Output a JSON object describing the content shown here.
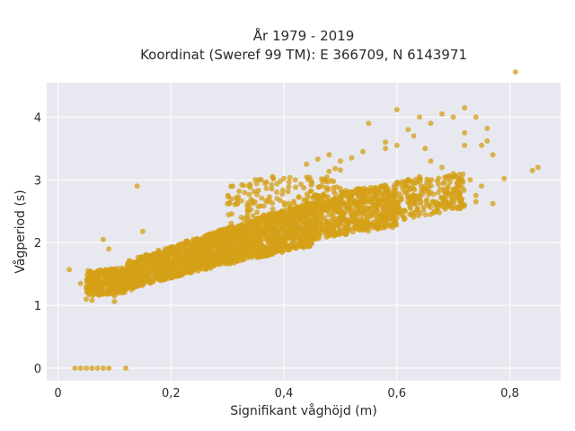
{
  "chart_data": {
    "type": "scatter",
    "title_line1": "År 1979 - 2019",
    "title_line2": "Koordinat (Sweref 99 TM): E 366709, N 6143971",
    "xlabel": "Signifikant våghöjd (m)",
    "ylabel": "Vågperiod (s)",
    "xlim": [
      -0.02,
      0.89
    ],
    "ylim": [
      -0.2,
      4.55
    ],
    "x_ticks": [
      {
        "value": 0,
        "label": "0"
      },
      {
        "value": 0.2,
        "label": "0,2"
      },
      {
        "value": 0.4,
        "label": "0,4"
      },
      {
        "value": 0.6,
        "label": "0,6"
      },
      {
        "value": 0.8,
        "label": "0,8"
      }
    ],
    "y_ticks": [
      {
        "value": 0,
        "label": "0"
      },
      {
        "value": 1,
        "label": "1"
      },
      {
        "value": 2,
        "label": "2"
      },
      {
        "value": 3,
        "label": "3"
      },
      {
        "value": 4,
        "label": "4"
      }
    ],
    "grid": true,
    "marker_color": "#d4a017",
    "background_color": "#e8e8f0",
    "points": [
      [
        0.03,
        0.0
      ],
      [
        0.04,
        0.0
      ],
      [
        0.05,
        0.0
      ],
      [
        0.06,
        0.0
      ],
      [
        0.07,
        0.0
      ],
      [
        0.08,
        0.0
      ],
      [
        0.09,
        0.0
      ],
      [
        0.12,
        0.0
      ],
      [
        0.02,
        1.57
      ],
      [
        0.04,
        1.35
      ],
      [
        0.05,
        1.1
      ],
      [
        0.055,
        1.2
      ],
      [
        0.06,
        1.08
      ],
      [
        0.07,
        1.3
      ],
      [
        0.08,
        1.2
      ],
      [
        0.09,
        1.5
      ],
      [
        0.09,
        1.9
      ],
      [
        0.08,
        2.05
      ],
      [
        0.1,
        1.15
      ],
      [
        0.1,
        1.06
      ],
      [
        0.13,
        1.25
      ],
      [
        0.14,
        1.6
      ],
      [
        0.15,
        2.18
      ],
      [
        0.14,
        2.9
      ],
      [
        0.06,
        1.45
      ],
      [
        0.07,
        1.45
      ],
      [
        0.08,
        1.35
      ],
      [
        0.1,
        1.4
      ],
      [
        0.11,
        1.5
      ],
      [
        0.12,
        1.55
      ],
      [
        0.13,
        1.5
      ],
      [
        0.15,
        1.6
      ],
      [
        0.16,
        1.7
      ],
      [
        0.18,
        1.8
      ],
      [
        0.2,
        1.85
      ],
      [
        0.22,
        1.95
      ],
      [
        0.24,
        2.05
      ],
      [
        0.26,
        2.1
      ],
      [
        0.28,
        2.15
      ],
      [
        0.3,
        2.2
      ],
      [
        0.32,
        2.25
      ],
      [
        0.34,
        2.3
      ],
      [
        0.36,
        2.35
      ],
      [
        0.38,
        2.4
      ],
      [
        0.4,
        2.45
      ],
      [
        0.42,
        2.5
      ],
      [
        0.44,
        2.55
      ],
      [
        0.46,
        2.6
      ],
      [
        0.48,
        2.65
      ],
      [
        0.5,
        2.7
      ],
      [
        0.52,
        2.75
      ],
      [
        0.54,
        2.8
      ],
      [
        0.56,
        2.85
      ],
      [
        0.58,
        2.9
      ],
      [
        0.6,
        2.95
      ],
      [
        0.62,
        3.0
      ],
      [
        0.64,
        3.05
      ],
      [
        0.6,
        4.12
      ],
      [
        0.64,
        4.0
      ],
      [
        0.66,
        3.9
      ],
      [
        0.62,
        3.8
      ],
      [
        0.68,
        4.05
      ],
      [
        0.7,
        4.0
      ],
      [
        0.72,
        4.15
      ],
      [
        0.72,
        3.75
      ],
      [
        0.74,
        4.0
      ],
      [
        0.76,
        3.82
      ],
      [
        0.76,
        3.62
      ],
      [
        0.72,
        3.55
      ],
      [
        0.75,
        3.55
      ],
      [
        0.77,
        3.4
      ],
      [
        0.81,
        4.72
      ],
      [
        0.84,
        3.15
      ],
      [
        0.85,
        3.2
      ],
      [
        0.79,
        3.02
      ],
      [
        0.77,
        2.62
      ],
      [
        0.74,
        2.65
      ],
      [
        0.72,
        2.6
      ],
      [
        0.7,
        2.62
      ],
      [
        0.66,
        2.45
      ],
      [
        0.6,
        2.4
      ],
      [
        0.54,
        2.33
      ],
      [
        0.5,
        2.3
      ],
      [
        0.46,
        2.2
      ],
      [
        0.42,
        2.15
      ],
      [
        0.38,
        2.05
      ],
      [
        0.34,
        2.0
      ],
      [
        0.3,
        1.95
      ],
      [
        0.26,
        1.85
      ],
      [
        0.22,
        1.75
      ],
      [
        0.18,
        1.6
      ],
      [
        0.16,
        1.55
      ],
      [
        0.36,
        3.0
      ],
      [
        0.38,
        3.05
      ],
      [
        0.4,
        3.02
      ],
      [
        0.42,
        3.0
      ],
      [
        0.44,
        3.25
      ],
      [
        0.46,
        3.33
      ],
      [
        0.48,
        3.4
      ],
      [
        0.5,
        3.3
      ],
      [
        0.52,
        3.35
      ],
      [
        0.54,
        3.45
      ],
      [
        0.55,
        3.9
      ],
      [
        0.58,
        3.6
      ],
      [
        0.58,
        3.5
      ],
      [
        0.6,
        3.55
      ],
      [
        0.63,
        3.7
      ],
      [
        0.65,
        3.5
      ],
      [
        0.66,
        3.3
      ],
      [
        0.68,
        3.2
      ],
      [
        0.7,
        3.1
      ],
      [
        0.71,
        2.9
      ],
      [
        0.73,
        3.0
      ],
      [
        0.75,
        2.9
      ],
      [
        0.74,
        2.75
      ]
    ],
    "bands": [
      {
        "x0": 0.05,
        "x1": 0.12,
        "ylo0": 1.15,
        "yhi0": 1.55,
        "ylo1": 1.2,
        "yhi1": 1.6,
        "n": 320
      },
      {
        "x0": 0.12,
        "x1": 0.25,
        "ylo0": 1.25,
        "yhi0": 1.7,
        "ylo1": 1.55,
        "yhi1": 2.1,
        "n": 650
      },
      {
        "x0": 0.25,
        "x1": 0.45,
        "ylo0": 1.55,
        "yhi0": 2.1,
        "ylo1": 1.95,
        "yhi1": 2.65,
        "n": 1100
      },
      {
        "x0": 0.3,
        "x1": 0.5,
        "ylo0": 2.3,
        "yhi0": 2.95,
        "ylo1": 2.5,
        "yhi1": 3.2,
        "n": 160
      },
      {
        "x0": 0.45,
        "x1": 0.6,
        "ylo0": 2.05,
        "yhi0": 2.75,
        "ylo1": 2.25,
        "yhi1": 2.95,
        "n": 600
      },
      {
        "x0": 0.6,
        "x1": 0.72,
        "ylo0": 2.35,
        "yhi0": 3.0,
        "ylo1": 2.55,
        "yhi1": 3.1,
        "n": 220
      }
    ]
  }
}
